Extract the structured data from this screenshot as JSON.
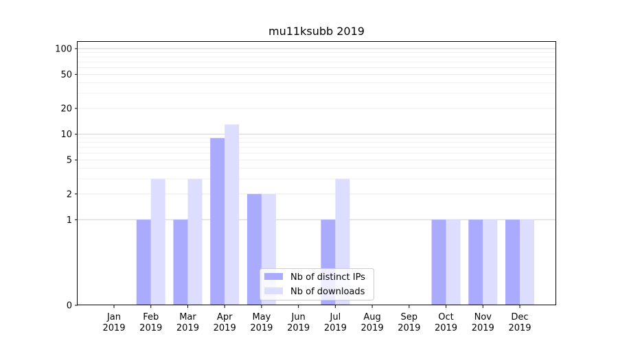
{
  "chart_data": {
    "type": "bar",
    "title": "mu11ksubb 2019",
    "xlabel": "",
    "ylabel": "",
    "yscale": "symlog",
    "ylim": [
      0,
      120
    ],
    "grid": "horizontal",
    "legend_position": "bottom-center",
    "categories": [
      [
        "Jan",
        "2019"
      ],
      [
        "Feb",
        "2019"
      ],
      [
        "Mar",
        "2019"
      ],
      [
        "Apr",
        "2019"
      ],
      [
        "May",
        "2019"
      ],
      [
        "Jun",
        "2019"
      ],
      [
        "Jul",
        "2019"
      ],
      [
        "Aug",
        "2019"
      ],
      [
        "Sep",
        "2019"
      ],
      [
        "Oct",
        "2019"
      ],
      [
        "Nov",
        "2019"
      ],
      [
        "Dec",
        "2019"
      ]
    ],
    "yticks": [
      0,
      1,
      2,
      5,
      10,
      20,
      50,
      100
    ],
    "series": [
      {
        "name": "Nb of distinct IPs",
        "color": "#aaaaff",
        "values": [
          0,
          1,
          1,
          9,
          2,
          0,
          1,
          0,
          0,
          1,
          1,
          1
        ]
      },
      {
        "name": "Nb of downloads",
        "color": "#ddddff",
        "values": [
          0,
          3,
          3,
          13,
          2,
          0,
          3,
          0,
          0,
          1,
          1,
          1
        ]
      }
    ]
  }
}
